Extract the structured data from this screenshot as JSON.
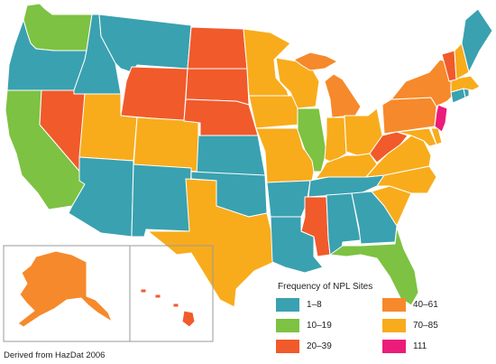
{
  "title": "",
  "legend": {
    "title": "Frequency of NPL Sites",
    "items": [
      {
        "label": "1–8",
        "color": "#3aa1b0"
      },
      {
        "label": "40–61",
        "color": "#f6892b"
      },
      {
        "label": "10–19",
        "color": "#7dc242"
      },
      {
        "label": "70–85",
        "color": "#f8ac1c"
      },
      {
        "label": "20–39",
        "color": "#f15a2b"
      },
      {
        "label": "111",
        "color": "#ec1c7a"
      }
    ]
  },
  "source": "Derived from HazDat 2006",
  "colors": {
    "c1_8": "#3aa1b0",
    "c10_19": "#7dc242",
    "c20_39": "#f15a2b",
    "c40_61": "#f6892b",
    "c70_85": "#f8ac1c",
    "c111": "#ec1c7a"
  },
  "states": {
    "WA": "10–19",
    "OR": "1–8",
    "CA": "10–19",
    "NV": "20–39",
    "ID": "1–8",
    "MT": "1–8",
    "WY": "20–39",
    "UT": "70–85",
    "CO": "70–85",
    "AZ": "1–8",
    "NM": "1–8",
    "ND": "20–39",
    "SD": "20–39",
    "NE": "20–39",
    "KS": "1–8",
    "OK": "1–8",
    "TX": "70–85",
    "MN": "70–85",
    "IA": "70–85",
    "MO": "70–85",
    "AR": "1–8",
    "LA": "1–8",
    "WI": "70–85",
    "IL": "10–19",
    "MI": "40–61",
    "IN": "70–85",
    "OH": "70–85",
    "KY": "70–85",
    "TN": "1–8",
    "MS": "20–39",
    "AL": "1–8",
    "GA": "1–8",
    "FL": "10–19",
    "SC": "70–85",
    "NC": "70–85",
    "VA": "70–85",
    "WV": "20–39",
    "MD": "70–85",
    "DE": "70–85",
    "PA": "40–61",
    "NY": "40–61",
    "NJ": "111",
    "CT": "1–8",
    "RI": "1–8",
    "MA": "70–85",
    "VT": "20–39",
    "NH": "70–85",
    "ME": "1–8",
    "AK": "40–61",
    "HI": "20–39"
  }
}
